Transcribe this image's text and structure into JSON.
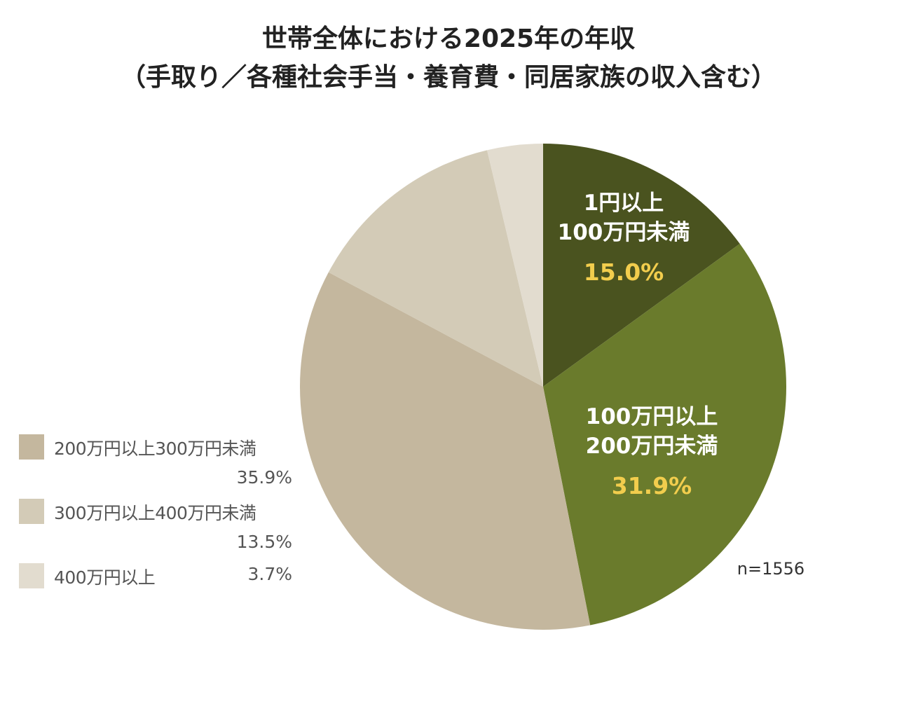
{
  "chart_data": {
    "type": "pie",
    "title": [
      "世帯全体における2025年の年収",
      "（手取り／各種社会手当・養育費・同居家族の収入含む）"
    ],
    "n_label": "n=1556",
    "unit": "%",
    "slices": [
      {
        "name": "1円以上100万円未満",
        "label_lines": [
          "1円以上",
          "100万円未満"
        ],
        "value": 15.0,
        "value_label": "15.0%",
        "color": "#4a531f",
        "show_on_chart": true
      },
      {
        "name": "100万円以上200万円未満",
        "label_lines": [
          "100万円以上",
          "200万円未満"
        ],
        "value": 31.9,
        "value_label": "31.9%",
        "color": "#6a7b2c",
        "show_on_chart": true
      },
      {
        "name": "200万円以上300万円未満",
        "value": 35.9,
        "value_label": "35.9%",
        "color": "#c4b79e",
        "show_on_chart": false
      },
      {
        "name": "300万円以上400万円未満",
        "value": 13.5,
        "value_label": "13.5%",
        "color": "#d3cbb7",
        "show_on_chart": false
      },
      {
        "name": "400万円以上",
        "value": 3.7,
        "value_label": "3.7%",
        "color": "#e2dccf",
        "show_on_chart": false
      }
    ],
    "legend": [
      {
        "label": "200万円以上300万円未満",
        "value": "35.9%",
        "color": "#c4b79e"
      },
      {
        "label": "300万円以上400万円未満",
        "value": "13.5%",
        "color": "#d3cbb7"
      },
      {
        "label": "400万円以上",
        "value": "3.7%",
        "color": "#e2dccf"
      }
    ]
  }
}
